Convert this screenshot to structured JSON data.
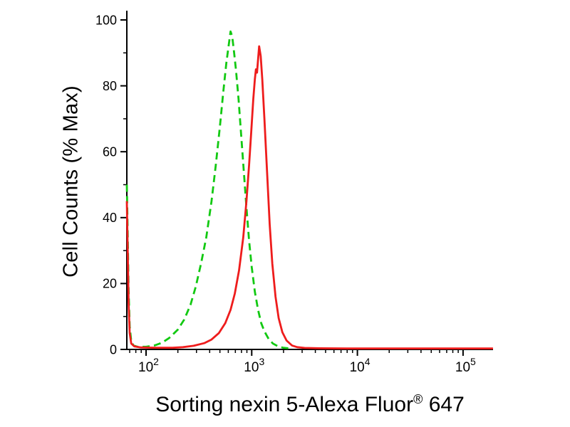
{
  "figure": {
    "background": "#ffffff",
    "axis_color": "#000000"
  },
  "chart_data": {
    "type": "line",
    "subtype": "flow-cytometry-histogram",
    "title": "",
    "xlabel": "Sorting nexin 5-Alexa Fluor® 647",
    "xlabel_parts": {
      "main": "Sorting nexin 5-Alexa Fluor",
      "registered": "®",
      "suffix": " 647"
    },
    "ylabel": "Cell Counts (% Max)",
    "x_scale": "log10",
    "xlim_log": [
      1.818,
      5.283
    ],
    "ylim": [
      0,
      103
    ],
    "x_tick_base": "10",
    "x_tick_exponents": [
      2,
      3,
      4,
      5
    ],
    "y_ticks": [
      0,
      20,
      40,
      60,
      80,
      100
    ],
    "y_minor_step": 10,
    "grid": false,
    "legend": "none",
    "series": [
      {
        "name": "green-dashed-histogram",
        "color": "#12c912",
        "style": "dashed",
        "dash": "10 6",
        "width": 2.8,
        "points_logx_pct": [
          [
            1.818,
            50
          ],
          [
            1.825,
            38
          ],
          [
            1.835,
            18
          ],
          [
            1.845,
            7
          ],
          [
            1.86,
            2.5
          ],
          [
            1.88,
            1.2
          ],
          [
            1.92,
            0.8
          ],
          [
            2.0,
            0.8
          ],
          [
            2.08,
            1.2
          ],
          [
            2.15,
            2
          ],
          [
            2.22,
            3.5
          ],
          [
            2.3,
            6
          ],
          [
            2.36,
            9
          ],
          [
            2.42,
            13.5
          ],
          [
            2.47,
            19
          ],
          [
            2.52,
            26
          ],
          [
            2.57,
            34
          ],
          [
            2.62,
            45
          ],
          [
            2.66,
            56
          ],
          [
            2.7,
            68
          ],
          [
            2.73,
            78
          ],
          [
            2.76,
            87
          ],
          [
            2.785,
            93
          ],
          [
            2.8,
            96.5
          ],
          [
            2.815,
            95
          ],
          [
            2.83,
            91
          ],
          [
            2.85,
            85
          ],
          [
            2.875,
            76
          ],
          [
            2.9,
            65
          ],
          [
            2.925,
            54
          ],
          [
            2.95,
            43
          ],
          [
            2.975,
            33
          ],
          [
            3.0,
            25
          ],
          [
            3.03,
            17.5
          ],
          [
            3.06,
            12
          ],
          [
            3.09,
            8
          ],
          [
            3.12,
            5.5
          ],
          [
            3.16,
            3.2
          ],
          [
            3.2,
            1.8
          ],
          [
            3.25,
            0.9
          ],
          [
            3.3,
            0.5
          ],
          [
            3.36,
            0.3
          ]
        ]
      },
      {
        "name": "red-solid-histogram",
        "color": "#ee1c1c",
        "style": "solid",
        "dash": "",
        "width": 2.8,
        "points_logx_pct": [
          [
            1.818,
            45
          ],
          [
            1.825,
            33
          ],
          [
            1.835,
            14
          ],
          [
            1.845,
            5
          ],
          [
            1.86,
            1.8
          ],
          [
            1.89,
            0.9
          ],
          [
            1.95,
            0.6
          ],
          [
            2.1,
            0.5
          ],
          [
            2.25,
            0.5
          ],
          [
            2.35,
            0.7
          ],
          [
            2.45,
            1.1
          ],
          [
            2.55,
            1.9
          ],
          [
            2.62,
            3
          ],
          [
            2.69,
            5
          ],
          [
            2.75,
            8
          ],
          [
            2.8,
            12
          ],
          [
            2.84,
            17
          ],
          [
            2.88,
            24
          ],
          [
            2.92,
            34
          ],
          [
            2.95,
            45
          ],
          [
            2.975,
            56
          ],
          [
            2.995,
            66
          ],
          [
            3.015,
            76
          ],
          [
            3.03,
            82
          ],
          [
            3.04,
            85
          ],
          [
            3.05,
            84
          ],
          [
            3.06,
            88
          ],
          [
            3.07,
            92
          ],
          [
            3.085,
            89
          ],
          [
            3.1,
            82
          ],
          [
            3.12,
            70
          ],
          [
            3.145,
            54
          ],
          [
            3.17,
            38
          ],
          [
            3.195,
            26
          ],
          [
            3.225,
            16
          ],
          [
            3.255,
            9.5
          ],
          [
            3.29,
            5.2
          ],
          [
            3.33,
            2.7
          ],
          [
            3.38,
            1.2
          ],
          [
            3.43,
            0.7
          ],
          [
            3.5,
            0.45
          ],
          [
            3.65,
            0.35
          ],
          [
            3.9,
            0.3
          ],
          [
            4.2,
            0.3
          ],
          [
            4.6,
            0.3
          ],
          [
            5.0,
            0.3
          ],
          [
            5.283,
            0.3
          ]
        ]
      }
    ]
  }
}
